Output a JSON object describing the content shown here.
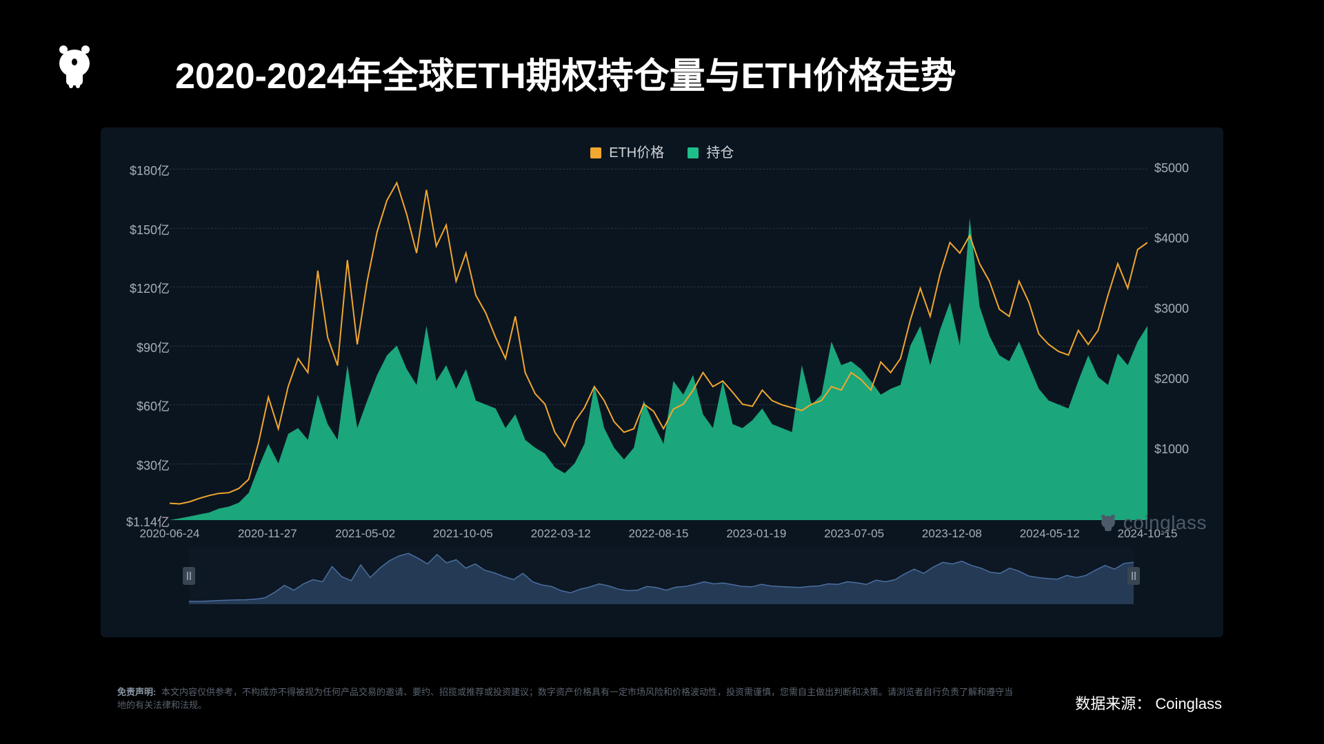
{
  "title": "2020-2024年全球ETH期权持仓量与ETH价格走势",
  "legend": {
    "price": {
      "label": "ETH价格",
      "color": "#f2a72e"
    },
    "oi": {
      "label": "持仓",
      "color": "#1fbf8c"
    }
  },
  "chart": {
    "background": "#0b1520",
    "grid_color": "#2a3340",
    "axis_label_color": "#a8aeb5",
    "left_axis": {
      "min": 1.14,
      "max": 180,
      "ticks": [
        "$1.14亿",
        "$30亿",
        "$60亿",
        "$90亿",
        "$120亿",
        "$150亿",
        "$180亿"
      ],
      "tick_values": [
        1.14,
        30,
        60,
        90,
        120,
        150,
        180
      ]
    },
    "right_axis": {
      "min": 0,
      "max": 5000,
      "ticks": [
        "$1000",
        "$2000",
        "$3000",
        "$4000",
        "$5000"
      ],
      "tick_values": [
        1000,
        2000,
        3000,
        4000,
        5000
      ]
    },
    "x_labels": [
      "2020-06-24",
      "2020-11-27",
      "2021-05-02",
      "2021-10-05",
      "2022-03-12",
      "2022-08-15",
      "2023-01-19",
      "2023-07-05",
      "2023-12-08",
      "2024-05-12",
      "2024-10-15"
    ],
    "series_price": {
      "type": "line",
      "color": "#f2a72e",
      "line_width": 2,
      "data": [
        240,
        230,
        260,
        310,
        350,
        380,
        390,
        450,
        580,
        1100,
        1750,
        1300,
        1900,
        2300,
        2100,
        3550,
        2600,
        2200,
        3700,
        2500,
        3400,
        4100,
        4550,
        4800,
        4350,
        3800,
        4700,
        3900,
        4200,
        3400,
        3800,
        3200,
        2950,
        2600,
        2300,
        2900,
        2100,
        1800,
        1650,
        1250,
        1050,
        1400,
        1600,
        1900,
        1700,
        1400,
        1250,
        1300,
        1650,
        1550,
        1300,
        1580,
        1650,
        1850,
        2100,
        1900,
        1980,
        1820,
        1650,
        1620,
        1850,
        1700,
        1640,
        1600,
        1560,
        1650,
        1700,
        1900,
        1850,
        2100,
        2000,
        1850,
        2250,
        2100,
        2300,
        2850,
        3300,
        2900,
        3500,
        3950,
        3800,
        4050,
        3650,
        3400,
        3000,
        2900,
        3400,
        3100,
        2650,
        2500,
        2400,
        2350,
        2700,
        2500,
        2700,
        3200,
        3650,
        3300,
        3850,
        3950
      ]
    },
    "series_oi": {
      "type": "area",
      "fill_color": "#1fbf8c",
      "fill_opacity": 0.85,
      "data": [
        1.14,
        2,
        3,
        4,
        5,
        7,
        8,
        10,
        15,
        28,
        40,
        30,
        45,
        48,
        42,
        65,
        50,
        42,
        80,
        48,
        62,
        75,
        85,
        90,
        78,
        70,
        100,
        72,
        80,
        68,
        78,
        62,
        60,
        58,
        48,
        55,
        42,
        38,
        35,
        28,
        25,
        30,
        40,
        70,
        48,
        38,
        32,
        38,
        62,
        50,
        40,
        72,
        65,
        75,
        55,
        48,
        72,
        50,
        48,
        52,
        58,
        50,
        48,
        46,
        80,
        60,
        65,
        92,
        80,
        82,
        78,
        72,
        65,
        68,
        70,
        90,
        100,
        80,
        98,
        112,
        90,
        155,
        110,
        95,
        85,
        82,
        92,
        80,
        68,
        62,
        60,
        58,
        72,
        85,
        74,
        70,
        86,
        80,
        92,
        100
      ]
    },
    "brush_series": {
      "color": "#4a6fa0",
      "fill_opacity": 0.4,
      "data": [
        240,
        230,
        260,
        310,
        350,
        380,
        390,
        450,
        580,
        1100,
        1750,
        1300,
        1900,
        2300,
        2100,
        3550,
        2600,
        2200,
        3700,
        2500,
        3400,
        4100,
        4550,
        4800,
        4350,
        3800,
        4700,
        3900,
        4200,
        3400,
        3800,
        3200,
        2950,
        2600,
        2300,
        2900,
        2100,
        1800,
        1650,
        1250,
        1050,
        1400,
        1600,
        1900,
        1700,
        1400,
        1250,
        1300,
        1650,
        1550,
        1300,
        1580,
        1650,
        1850,
        2100,
        1900,
        1980,
        1820,
        1650,
        1620,
        1850,
        1700,
        1640,
        1600,
        1560,
        1650,
        1700,
        1900,
        1850,
        2100,
        2000,
        1850,
        2250,
        2100,
        2300,
        2850,
        3300,
        2900,
        3500,
        3950,
        3800,
        4050,
        3650,
        3400,
        3000,
        2900,
        3400,
        3100,
        2650,
        2500,
        2400,
        2350,
        2700,
        2500,
        2700,
        3200,
        3650,
        3300,
        3850,
        3950
      ]
    }
  },
  "watermark": "coinglass",
  "disclaimer": {
    "lead": "免责声明:",
    "text": "本文内容仅供参考，不构成亦不得被视为任何产品交易的邀请、要约、招揽或推荐或投资建议；数字资产价格具有一定市场风险和价格波动性，投资需谨慎，您需自主做出判断和决策。请浏览者自行负责了解和遵守当地的有关法律和法规。"
  },
  "source": {
    "prefix": "数据来源：",
    "value": "Coinglass"
  }
}
